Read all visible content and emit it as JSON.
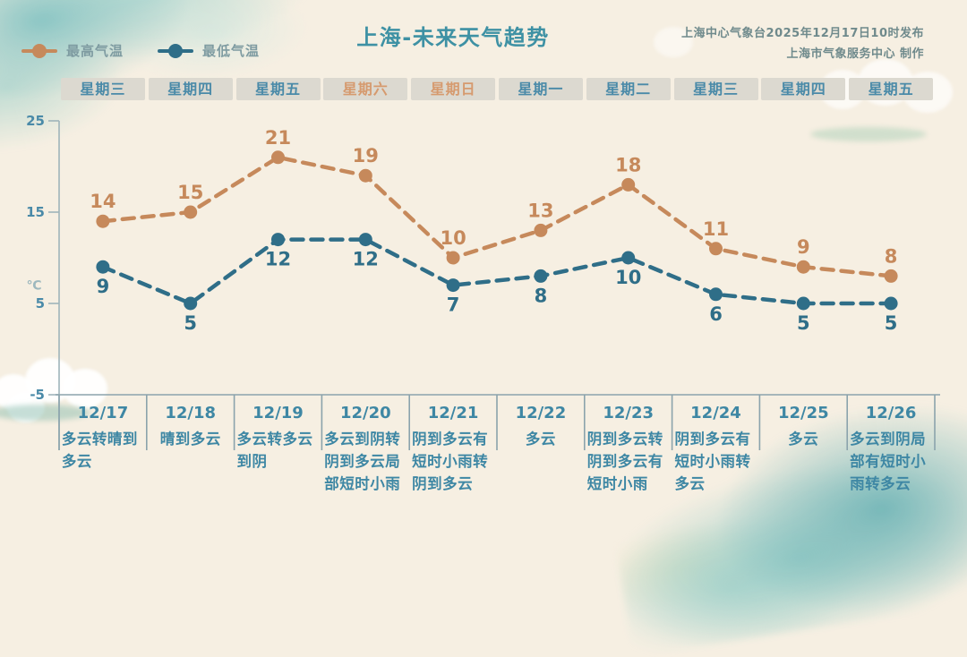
{
  "page": {
    "title": "上海-未来天气趋势",
    "source_line1": "上海中心气象台2025年12月17日10时发布",
    "source_line2": "上海市气象服务中心 制作"
  },
  "legend": {
    "items": [
      {
        "label": "最高气温",
        "color": "#c6895b"
      },
      {
        "label": "最低气温",
        "color": "#2f6e88"
      }
    ]
  },
  "weekday_row": [
    {
      "label": "星期三",
      "highlight": false
    },
    {
      "label": "星期四",
      "highlight": false
    },
    {
      "label": "星期五",
      "highlight": false
    },
    {
      "label": "星期六",
      "highlight": true
    },
    {
      "label": "星期日",
      "highlight": true
    },
    {
      "label": "星期一",
      "highlight": false
    },
    {
      "label": "星期二",
      "highlight": false
    },
    {
      "label": "星期三",
      "highlight": false
    },
    {
      "label": "星期四",
      "highlight": false
    },
    {
      "label": "星期五",
      "highlight": false
    }
  ],
  "chart_data": {
    "type": "line",
    "title": "上海-未来天气趋势",
    "categories": [
      "12/17",
      "12/18",
      "12/19",
      "12/20",
      "12/21",
      "12/22",
      "12/23",
      "12/24",
      "12/25",
      "12/26"
    ],
    "series": [
      {
        "name": "最高气温",
        "color": "#c6895b",
        "values": [
          14,
          15,
          21,
          19,
          10,
          13,
          18,
          11,
          9,
          8
        ],
        "label_position": "above"
      },
      {
        "name": "最低气温",
        "color": "#2f6e88",
        "values": [
          9,
          5,
          12,
          12,
          7,
          8,
          10,
          6,
          5,
          5
        ],
        "label_position": "below"
      }
    ],
    "ylabel": "℃",
    "yticks": [
      25,
      15,
      5,
      -5
    ],
    "ylim": [
      -5,
      25
    ],
    "grid": false,
    "line_style": "dashed",
    "marker": "circle",
    "legend_position": "top-left"
  },
  "table": {
    "dates": [
      "12/17",
      "12/18",
      "12/19",
      "12/20",
      "12/21",
      "12/22",
      "12/23",
      "12/24",
      "12/25",
      "12/26"
    ],
    "descriptions": [
      "多云转晴到多云",
      "晴到多云",
      "多云转多云到阴",
      "多云到阴转阴到多云局部短时小雨",
      "阴到多云有短时小雨转阴到多云",
      "多云",
      "阴到多云转阴到多云有短时小雨",
      "阴到多云有短时小雨转多云",
      "多云",
      "多云到阴局部有短时小雨转多云"
    ]
  },
  "colors": {
    "background": "#f6efe2",
    "high_series": "#c6895b",
    "low_series": "#2f6e88",
    "title": "#3e91a4",
    "weekday_text": "#4a8aa8",
    "weekend_text": "#d69a6e",
    "weekday_box_bg": "#dcd9d0",
    "table_text": "#3e87a4",
    "axis_line": "#9fb4ba",
    "table_line": "#8ba3ac",
    "watercolor": "#7cc0c0"
  }
}
